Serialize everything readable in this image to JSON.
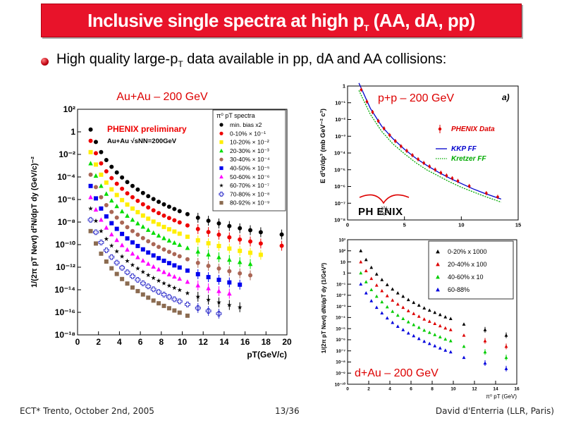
{
  "slide": {
    "title_main": "Inclusive single spectra at high p",
    "title_sub": "T",
    "title_tail": " (AA, dA, pp)",
    "bullet_main": "High quality large-p",
    "bullet_sub": "T",
    "bullet_tail": " data available in pp, dA and AA collisions:"
  },
  "footer": {
    "left": "ECT* Trento, October 2nd, 2005",
    "page": "13/36",
    "right": "David d'Enterria (LLR, Paris)"
  },
  "chart_data": [
    {
      "id": "auau",
      "type": "scatter",
      "caption": "Au+Au – 200 GeV",
      "legend_title": "π⁰ pT spectra",
      "preliminary_label": "PHENIX preliminary",
      "system_label": "Au+Au √sNN=200GeV",
      "xlabel": "pT(GeV/c)",
      "ylabel": "1/(2π pT Nevt) d²N/dpT dy (GeV/c)⁻²",
      "xlim": [
        0,
        20
      ],
      "ylim_log10": [
        -18,
        2
      ],
      "log_y": true,
      "xticks": [
        "0",
        "2",
        "4",
        "6",
        "8",
        "10",
        "12",
        "14",
        "16",
        "18",
        "20"
      ],
      "yticks": [
        "10²",
        "1",
        "10⁻²",
        "10⁻⁴",
        "10⁻⁶",
        "10⁻⁸",
        "10⁻¹⁰",
        "10⁻¹²",
        "10⁻¹⁴",
        "10⁻¹⁶",
        "10⁻¹⁸"
      ],
      "series": [
        {
          "name": "min. bias x2",
          "color": "#000000",
          "marker": "circle",
          "x": [
            1.25,
            1.75,
            2.25,
            2.75,
            3.25,
            3.75,
            4.25,
            4.75,
            5.25,
            5.75,
            6.25,
            6.75,
            7.25,
            7.75,
            8.25,
            8.75,
            9.25,
            9.75,
            10.5,
            11.5,
            12.5,
            13.5,
            14.5,
            15.5,
            16.5,
            17.5,
            19.5
          ],
          "log10y": [
            0.2,
            -0.9,
            -1.8,
            -2.5,
            -3.1,
            -3.6,
            -4.05,
            -4.45,
            -4.8,
            -5.12,
            -5.42,
            -5.7,
            -5.96,
            -6.2,
            -6.43,
            -6.64,
            -6.84,
            -7.03,
            -7.3,
            -7.62,
            -7.88,
            -8.12,
            -8.35,
            -8.55,
            -8.72,
            -8.9,
            -9.1
          ]
        },
        {
          "name": "0-10% × 10⁻¹",
          "color": "#ee0000",
          "marker": "circle",
          "x": [
            1.25,
            1.75,
            2.25,
            2.75,
            3.25,
            3.75,
            4.25,
            4.75,
            5.25,
            5.75,
            6.25,
            6.75,
            7.25,
            7.75,
            8.25,
            8.75,
            9.25,
            9.75,
            10.5,
            11.5,
            12.5,
            13.5,
            14.5,
            15.5,
            16.5,
            17.5,
            19.5
          ],
          "log10y": [
            -0.8,
            -1.9,
            -2.8,
            -3.5,
            -4.1,
            -4.6,
            -5.05,
            -5.45,
            -5.8,
            -6.12,
            -6.42,
            -6.7,
            -6.96,
            -7.2,
            -7.43,
            -7.64,
            -7.84,
            -8.03,
            -8.3,
            -8.62,
            -8.88,
            -9.12,
            -9.35,
            -9.55,
            -9.72,
            -9.9,
            -10.1
          ]
        },
        {
          "name": "10-20% × 10⁻²",
          "color": "#ffee00",
          "marker": "square",
          "x": [
            1.25,
            1.75,
            2.25,
            2.75,
            3.25,
            3.75,
            4.25,
            4.75,
            5.25,
            5.75,
            6.25,
            6.75,
            7.25,
            7.75,
            8.25,
            8.75,
            9.25,
            9.75,
            10.5,
            11.5,
            12.5,
            13.5,
            14.5,
            15.5,
            16.5,
            17.5
          ],
          "log10y": [
            -1.8,
            -2.9,
            -3.8,
            -4.5,
            -5.1,
            -5.6,
            -6.05,
            -6.45,
            -6.8,
            -7.12,
            -7.42,
            -7.7,
            -7.96,
            -8.2,
            -8.43,
            -8.64,
            -8.84,
            -9.03,
            -9.3,
            -9.62,
            -9.88,
            -10.12,
            -10.35,
            -10.55,
            -10.72,
            -10.9
          ]
        },
        {
          "name": "20-30% × 10⁻³",
          "color": "#00dd00",
          "marker": "triangle",
          "x": [
            1.25,
            1.75,
            2.25,
            2.75,
            3.25,
            3.75,
            4.25,
            4.75,
            5.25,
            5.75,
            6.25,
            6.75,
            7.25,
            7.75,
            8.25,
            8.75,
            9.25,
            9.75,
            10.5,
            11.5,
            12.5,
            13.5,
            14.5,
            15.5,
            16.5
          ],
          "log10y": [
            -2.8,
            -3.9,
            -4.8,
            -5.5,
            -6.1,
            -6.6,
            -7.05,
            -7.45,
            -7.8,
            -8.12,
            -8.42,
            -8.7,
            -8.96,
            -9.2,
            -9.43,
            -9.64,
            -9.84,
            -10.03,
            -10.3,
            -10.62,
            -10.88,
            -11.12,
            -11.35,
            -11.55,
            -11.72
          ]
        },
        {
          "name": "30-40% × 10⁻⁴",
          "color": "#aa6655",
          "marker": "circle",
          "x": [
            1.25,
            1.75,
            2.25,
            2.75,
            3.25,
            3.75,
            4.25,
            4.75,
            5.25,
            5.75,
            6.25,
            6.75,
            7.25,
            7.75,
            8.25,
            8.75,
            9.25,
            9.75,
            10.5,
            11.5,
            12.5,
            13.5,
            14.5,
            15.5,
            16.5
          ],
          "log10y": [
            -3.8,
            -4.9,
            -5.8,
            -6.5,
            -7.1,
            -7.6,
            -8.05,
            -8.45,
            -8.8,
            -9.12,
            -9.42,
            -9.7,
            -9.96,
            -10.2,
            -10.43,
            -10.64,
            -10.84,
            -11.03,
            -11.3,
            -11.62,
            -11.88,
            -12.12,
            -12.35,
            -12.55,
            -12.72
          ]
        },
        {
          "name": "40-50% × 10⁻⁵",
          "color": "#0000ee",
          "marker": "square",
          "x": [
            1.25,
            1.75,
            2.25,
            2.75,
            3.25,
            3.75,
            4.25,
            4.75,
            5.25,
            5.75,
            6.25,
            6.75,
            7.25,
            7.75,
            8.25,
            8.75,
            9.25,
            9.75,
            10.5,
            11.5,
            12.5,
            13.5,
            14.5,
            15.5
          ],
          "log10y": [
            -4.8,
            -5.9,
            -6.8,
            -7.5,
            -8.1,
            -8.6,
            -9.05,
            -9.45,
            -9.8,
            -10.12,
            -10.42,
            -10.7,
            -10.96,
            -11.2,
            -11.43,
            -11.64,
            -11.84,
            -12.03,
            -12.3,
            -12.62,
            -12.88,
            -13.12,
            -13.35,
            -13.55
          ]
        },
        {
          "name": "50-60% × 10⁻⁶",
          "color": "#ff00ff",
          "marker": "triangle",
          "x": [
            1.25,
            1.75,
            2.25,
            2.75,
            3.25,
            3.75,
            4.25,
            4.75,
            5.25,
            5.75,
            6.25,
            6.75,
            7.25,
            7.75,
            8.25,
            8.75,
            9.25,
            9.75,
            10.5,
            11.5,
            12.5,
            13.5,
            14.5
          ],
          "log10y": [
            -5.8,
            -6.9,
            -7.8,
            -8.5,
            -9.1,
            -9.6,
            -10.05,
            -10.45,
            -10.8,
            -11.12,
            -11.42,
            -11.7,
            -11.96,
            -12.2,
            -12.43,
            -12.64,
            -12.84,
            -13.03,
            -13.3,
            -13.62,
            -13.88,
            -14.12,
            -14.35
          ]
        },
        {
          "name": "60-70% × 10⁻⁷",
          "color": "#000000",
          "marker": "star",
          "x": [
            1.25,
            1.75,
            2.25,
            2.75,
            3.25,
            3.75,
            4.25,
            4.75,
            5.25,
            5.75,
            6.25,
            6.75,
            7.25,
            7.75,
            8.25,
            8.75,
            9.25,
            9.75,
            10.5,
            11.5,
            12.5,
            13.5,
            14.5,
            15.5
          ],
          "log10y": [
            -6.8,
            -7.9,
            -8.8,
            -9.5,
            -10.1,
            -10.6,
            -11.05,
            -11.45,
            -11.8,
            -12.12,
            -12.42,
            -12.7,
            -12.96,
            -13.2,
            -13.43,
            -13.64,
            -13.84,
            -14.03,
            -14.3,
            -14.62,
            -14.88,
            -15.12,
            -15.35,
            -15.55
          ]
        },
        {
          "name": "70-80% × 10⁻⁸",
          "color": "#3333cc",
          "marker": "open-cross",
          "x": [
            1.25,
            1.75,
            2.25,
            2.75,
            3.25,
            3.75,
            4.25,
            4.75,
            5.25,
            5.75,
            6.25,
            6.75,
            7.25,
            7.75,
            8.25,
            8.75,
            9.25,
            9.75,
            10.5,
            11.5,
            12.5,
            13.5
          ],
          "log10y": [
            -7.8,
            -8.9,
            -9.8,
            -10.5,
            -11.1,
            -11.6,
            -12.05,
            -12.45,
            -12.8,
            -13.12,
            -13.42,
            -13.7,
            -13.96,
            -14.2,
            -14.43,
            -14.64,
            -14.84,
            -15.03,
            -15.3,
            -15.62,
            -15.88,
            -16.12
          ]
        },
        {
          "name": "80-92% × 10⁻⁹",
          "color": "#8b6b50",
          "marker": "square",
          "x": [
            1.25,
            1.75,
            2.25,
            2.75,
            3.25,
            3.75,
            4.25,
            4.75,
            5.25,
            5.75,
            6.25,
            6.75,
            7.25,
            7.75,
            8.25,
            8.75,
            9.25,
            9.75,
            10.5
          ],
          "log10y": [
            -8.8,
            -9.9,
            -10.8,
            -11.5,
            -12.1,
            -12.6,
            -13.05,
            -13.45,
            -13.8,
            -14.12,
            -14.42,
            -14.7,
            -14.96,
            -15.2,
            -15.43,
            -15.64,
            -15.84,
            -16.03,
            -16.3
          ]
        }
      ]
    },
    {
      "id": "pp",
      "type": "scatter",
      "caption": "p+p – 200 GeV",
      "panel_tag": "a)",
      "logo_text": "PH ENIX",
      "ylabel": "E d³σ/dp³ (mb GeV⁻² c³)",
      "xlim": [
        0,
        15
      ],
      "ylim_log10": [
        -9,
        0
      ],
      "log_y": true,
      "xticks": [
        "0",
        "5",
        "10",
        "15"
      ],
      "yticks": [
        "1",
        "10⁻¹",
        "10⁻²",
        "10⁻³",
        "10⁻⁴",
        "10⁻⁵",
        "10⁻⁶",
        "10⁻⁷",
        "10⁻⁸"
      ],
      "legend": [
        {
          "name": "PHENIX Data",
          "color": "#dd0000",
          "style": "point"
        },
        {
          "name": "KKP FF",
          "color": "#0000cc",
          "style": "solid"
        },
        {
          "name": "Kretzer FF",
          "color": "#00aa00",
          "style": "dotted"
        }
      ],
      "data": {
        "x": [
          1.2,
          1.7,
          2.2,
          2.7,
          3.2,
          3.7,
          4.2,
          4.7,
          5.2,
          5.7,
          6.2,
          6.7,
          7.2,
          7.7,
          8.2,
          8.7,
          9.2,
          9.7,
          10.7,
          12.2,
          13.2
        ],
        "log10y": [
          -0.25,
          -1.05,
          -1.75,
          -2.35,
          -2.85,
          -3.3,
          -3.7,
          -4.05,
          -4.35,
          -4.65,
          -4.92,
          -5.17,
          -5.4,
          -5.62,
          -5.83,
          -6.02,
          -6.2,
          -6.38,
          -6.72,
          -7.2,
          -7.45
        ]
      },
      "kkp_ff": {
        "x": [
          1,
          2,
          3,
          4,
          5,
          6,
          7,
          8,
          9,
          10,
          11,
          12,
          13.5
        ],
        "log10y": [
          0.2,
          -1.5,
          -2.7,
          -3.55,
          -4.25,
          -4.85,
          -5.35,
          -5.8,
          -6.2,
          -6.55,
          -6.9,
          -7.2,
          -7.6
        ]
      },
      "kretzer_ff": {
        "x": [
          1,
          2,
          3,
          4,
          5,
          6,
          7,
          8,
          9,
          10,
          11,
          12,
          13.5
        ],
        "log10y": [
          -0.3,
          -1.9,
          -3.05,
          -3.9,
          -4.55,
          -5.15,
          -5.65,
          -6.05,
          -6.45,
          -6.8,
          -7.1,
          -7.4,
          -7.8
        ]
      }
    },
    {
      "id": "dau",
      "type": "scatter",
      "caption": "d+Au – 200 GeV",
      "xlabel": "π⁰ pT (GeV)",
      "ylabel": "1/(2π pT Nevt) dN/dpT dy (1/GeV²)",
      "xlim": [
        0,
        16
      ],
      "ylim_log10": [
        -10,
        3
      ],
      "log_y": true,
      "xticks": [
        "0",
        "2",
        "4",
        "6",
        "8",
        "10",
        "12",
        "14",
        "16"
      ],
      "yticks": [
        "10³",
        "10²",
        "10",
        "1",
        "10⁻¹",
        "10⁻²",
        "10⁻³",
        "10⁻⁴",
        "10⁻⁵",
        "10⁻⁶",
        "10⁻⁷",
        "10⁻⁸",
        "10⁻⁹",
        "10⁻¹⁰"
      ],
      "series": [
        {
          "name": "0-20% x 1000",
          "color": "#000000",
          "marker": "triangle",
          "x": [
            1.25,
            1.75,
            2.25,
            2.75,
            3.25,
            3.75,
            4.25,
            4.75,
            5.25,
            5.75,
            6.25,
            6.75,
            7.25,
            7.75,
            8.25,
            8.75,
            9.25,
            9.75,
            11,
            13,
            15
          ],
          "log10y": [
            2.0,
            1.2,
            0.5,
            -0.1,
            -0.6,
            -1.05,
            -1.45,
            -1.8,
            -2.1,
            -2.4,
            -2.65,
            -2.9,
            -3.15,
            -3.35,
            -3.55,
            -3.75,
            -3.95,
            -4.1,
            -4.6,
            -5.1,
            -5.6
          ]
        },
        {
          "name": "20-40% x 100",
          "color": "#dd0000",
          "marker": "triangle",
          "x": [
            1.25,
            1.75,
            2.25,
            2.75,
            3.25,
            3.75,
            4.25,
            4.75,
            5.25,
            5.75,
            6.25,
            6.75,
            7.25,
            7.75,
            8.25,
            8.75,
            9.25,
            9.75,
            11,
            13,
            15
          ],
          "log10y": [
            1.0,
            0.2,
            -0.5,
            -1.1,
            -1.6,
            -2.05,
            -2.45,
            -2.8,
            -3.1,
            -3.4,
            -3.65,
            -3.9,
            -4.15,
            -4.35,
            -4.55,
            -4.75,
            -4.95,
            -5.1,
            -5.6,
            -6.1,
            -6.6
          ]
        },
        {
          "name": "40-60% x  10",
          "color": "#00cc00",
          "marker": "triangle",
          "x": [
            1.25,
            1.75,
            2.25,
            2.75,
            3.25,
            3.75,
            4.25,
            4.75,
            5.25,
            5.75,
            6.25,
            6.75,
            7.25,
            7.75,
            8.25,
            8.75,
            9.25,
            9.75,
            11,
            13,
            15
          ],
          "log10y": [
            0.0,
            -0.8,
            -1.5,
            -2.1,
            -2.6,
            -3.05,
            -3.45,
            -3.8,
            -4.1,
            -4.4,
            -4.65,
            -4.9,
            -5.15,
            -5.35,
            -5.55,
            -5.75,
            -5.95,
            -6.1,
            -6.6,
            -7.1,
            -7.6
          ]
        },
        {
          "name": "60-88%",
          "color": "#0000dd",
          "marker": "triangle",
          "x": [
            1.25,
            1.75,
            2.25,
            2.75,
            3.25,
            3.75,
            4.25,
            4.75,
            5.25,
            5.75,
            6.25,
            6.75,
            7.25,
            7.75,
            8.25,
            8.75,
            9.25,
            9.75,
            11,
            13,
            15
          ],
          "log10y": [
            -1.0,
            -1.8,
            -2.5,
            -3.1,
            -3.6,
            -4.05,
            -4.45,
            -4.8,
            -5.1,
            -5.4,
            -5.65,
            -5.9,
            -6.15,
            -6.35,
            -6.55,
            -6.75,
            -6.95,
            -7.1,
            -7.6,
            -8.1,
            -8.6
          ]
        }
      ]
    }
  ]
}
